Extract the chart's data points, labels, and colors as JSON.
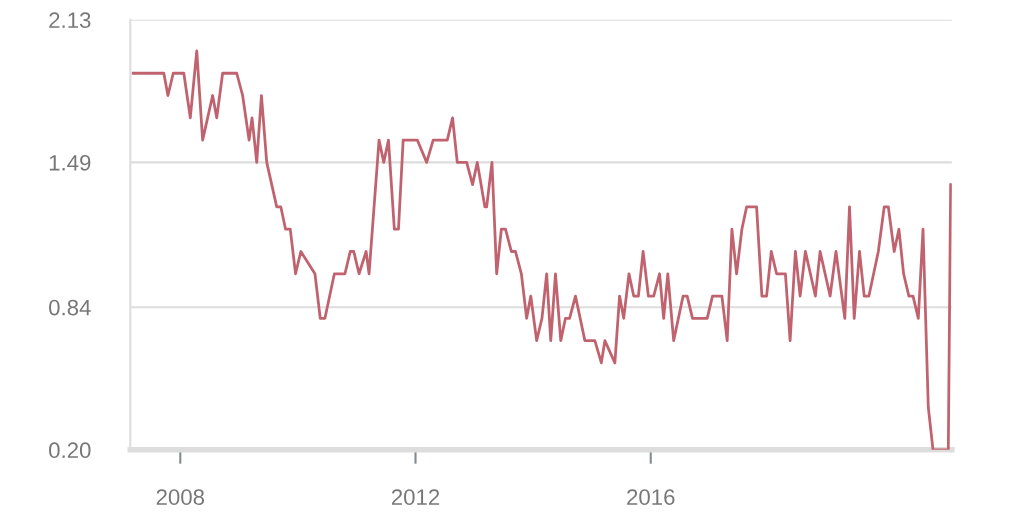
{
  "chart_data": {
    "type": "line",
    "color": "#c0636f",
    "x": [
      2007.2,
      2007.72,
      2007.79,
      2007.88,
      2008.06,
      2008.17,
      2008.28,
      2008.38,
      2008.55,
      2008.62,
      2008.72,
      2008.96,
      2009.06,
      2009.17,
      2009.22,
      2009.3,
      2009.38,
      2009.47,
      2009.64,
      2009.71,
      2009.79,
      2009.87,
      2009.96,
      2010.05,
      2010.29,
      2010.38,
      2010.46,
      2010.62,
      2010.8,
      2010.89,
      2010.95,
      2011.04,
      2011.16,
      2011.21,
      2011.38,
      2011.46,
      2011.54,
      2011.64,
      2011.71,
      2011.79,
      2012.03,
      2012.19,
      2012.3,
      2012.54,
      2012.63,
      2012.71,
      2012.87,
      2012.97,
      2013.05,
      2013.18,
      2013.21,
      2013.3,
      2013.38,
      2013.46,
      2013.53,
      2013.63,
      2013.7,
      2013.8,
      2013.89,
      2013.96,
      2014.06,
      2014.15,
      2014.23,
      2014.3,
      2014.38,
      2014.47,
      2014.55,
      2014.62,
      2014.72,
      2014.88,
      2015.05,
      2015.16,
      2015.22,
      2015.39,
      2015.47,
      2015.54,
      2015.63,
      2015.71,
      2015.79,
      2015.87,
      2015.96,
      2016.05,
      2016.15,
      2016.22,
      2016.29,
      2016.39,
      2016.55,
      2016.62,
      2016.71,
      2016.96,
      2017.05,
      2017.21,
      2017.3,
      2017.38,
      2017.46,
      2017.55,
      2017.63,
      2017.8,
      2017.89,
      2017.97,
      2018.05,
      2018.14,
      2018.29,
      2018.37,
      2018.46,
      2018.54,
      2018.63,
      2018.8,
      2018.88,
      2019.05,
      2019.15,
      2019.3,
      2019.38,
      2019.46,
      2019.55,
      2019.63,
      2019.71,
      2019.87,
      2019.97,
      2020.04,
      2020.14,
      2020.22,
      2020.3,
      2020.39,
      2020.46,
      2020.55,
      2020.63,
      2020.72,
      2020.8,
      2021.06,
      2021.1
    ],
    "values": [
      1.89,
      1.89,
      1.79,
      1.89,
      1.89,
      1.69,
      1.99,
      1.59,
      1.79,
      1.69,
      1.89,
      1.89,
      1.79,
      1.59,
      1.69,
      1.49,
      1.79,
      1.49,
      1.29,
      1.29,
      1.19,
      1.19,
      0.99,
      1.09,
      0.99,
      0.79,
      0.79,
      0.99,
      0.99,
      1.09,
      1.09,
      0.99,
      1.09,
      0.99,
      1.59,
      1.49,
      1.59,
      1.19,
      1.19,
      1.59,
      1.59,
      1.49,
      1.59,
      1.59,
      1.69,
      1.49,
      1.49,
      1.39,
      1.49,
      1.29,
      1.29,
      1.49,
      0.99,
      1.19,
      1.19,
      1.09,
      1.09,
      0.99,
      0.79,
      0.89,
      0.69,
      0.79,
      0.99,
      0.69,
      0.99,
      0.69,
      0.79,
      0.79,
      0.89,
      0.69,
      0.69,
      0.59,
      0.69,
      0.59,
      0.89,
      0.79,
      0.99,
      0.89,
      0.89,
      1.09,
      0.89,
      0.89,
      0.99,
      0.79,
      0.99,
      0.69,
      0.89,
      0.89,
      0.79,
      0.79,
      0.89,
      0.89,
      0.69,
      1.19,
      0.99,
      1.19,
      1.29,
      1.29,
      0.89,
      0.89,
      1.09,
      0.99,
      0.99,
      0.69,
      1.09,
      0.89,
      1.09,
      0.89,
      1.09,
      0.89,
      1.09,
      0.79,
      1.29,
      0.79,
      1.09,
      0.89,
      0.89,
      1.09,
      1.29,
      1.29,
      1.09,
      1.19,
      0.99,
      0.89,
      0.89,
      0.79,
      1.19,
      0.39,
      0.2,
      0.2,
      1.39
    ],
    "xlim": [
      2007.15,
      2021.12
    ],
    "xticks": [
      2008,
      2012,
      2016
    ],
    "ylim": [
      0.2,
      2.13
    ],
    "yticks": [
      {
        "value": 0.2,
        "label": "0.20"
      },
      0.84,
      1.49,
      2.13
    ],
    "grid": "y",
    "legend": false,
    "marker": "none",
    "line_style": "solid"
  }
}
